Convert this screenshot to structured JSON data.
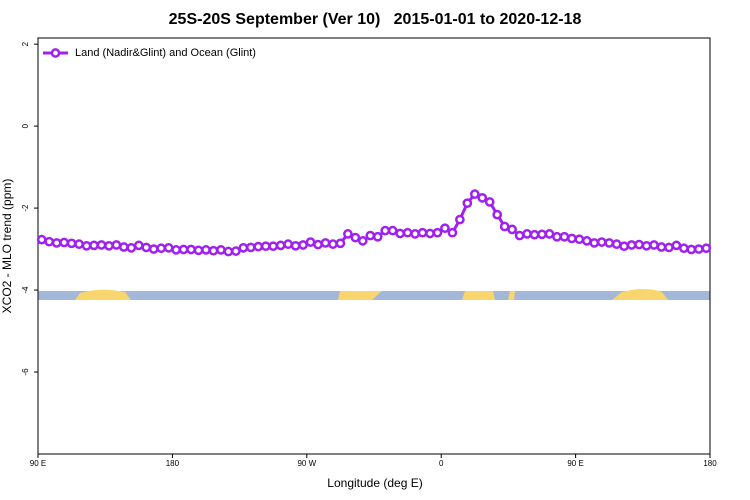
{
  "chart_data": {
    "type": "line",
    "title": "25S-20S September (Ver 10)   2015-01-01 to 2020-12-18",
    "x_label": "Longitude (deg E)",
    "y_label": "XCO2 - MLO trend (ppm)",
    "xlim": [
      90,
      540
    ],
    "ylim": [
      -8,
      2.15
    ],
    "xticks": [
      {
        "value": 90,
        "label": "90 E"
      },
      {
        "value": 180,
        "label": "180"
      },
      {
        "value": 270,
        "label": "90 W"
      },
      {
        "value": 360,
        "label": "0"
      },
      {
        "value": 450,
        "label": "90 E"
      },
      {
        "value": 540,
        "label": "180"
      }
    ],
    "yticks": [
      2,
      0,
      -2,
      -4,
      -6
    ],
    "legend": "top-left",
    "x": [
      92.5,
      97.5,
      102.5,
      107.5,
      112.5,
      117.5,
      122.5,
      127.5,
      132.5,
      137.5,
      142.5,
      147.5,
      152.5,
      157.5,
      162.5,
      167.5,
      172.5,
      177.5,
      182.5,
      187.5,
      192.5,
      197.5,
      202.5,
      207.5,
      212.5,
      217.5,
      222.5,
      227.5,
      232.5,
      237.5,
      242.5,
      247.5,
      252.5,
      257.5,
      262.5,
      267.5,
      272.5,
      277.5,
      282.5,
      287.5,
      292.5,
      297.5,
      302.5,
      307.5,
      312.5,
      317.5,
      322.5,
      327.5,
      332.5,
      337.5,
      342.5,
      347.5,
      352.5,
      357.5,
      362.5,
      367.5,
      372.5,
      377.5,
      382.5,
      387.5,
      392.5,
      397.5,
      402.5,
      407.5,
      412.5,
      417.5,
      422.5,
      427.5,
      432.5,
      437.5,
      442.5,
      447.5,
      452.5,
      457.5,
      462.5,
      467.5,
      472.5,
      477.5,
      482.5,
      487.5,
      492.5,
      497.5,
      502.5,
      507.5,
      512.5,
      517.5,
      522.5,
      527.5,
      532.5,
      537.5
    ],
    "series": [
      {
        "name": "Land (Nadir&Glint) and Ocean (Glint)",
        "color": "#a020f0",
        "values": [
          -2.77,
          -2.82,
          -2.85,
          -2.84,
          -2.86,
          -2.88,
          -2.92,
          -2.91,
          -2.9,
          -2.92,
          -2.9,
          -2.95,
          -2.97,
          -2.91,
          -2.96,
          -3.0,
          -2.98,
          -2.97,
          -3.02,
          -3.01,
          -3.01,
          -3.03,
          -3.02,
          -3.04,
          -3.02,
          -3.06,
          -3.05,
          -2.97,
          -2.96,
          -2.94,
          -2.93,
          -2.93,
          -2.91,
          -2.88,
          -2.92,
          -2.9,
          -2.83,
          -2.89,
          -2.85,
          -2.88,
          -2.86,
          -2.63,
          -2.72,
          -2.8,
          -2.67,
          -2.7,
          -2.55,
          -2.55,
          -2.62,
          -2.6,
          -2.63,
          -2.6,
          -2.62,
          -2.6,
          -2.49,
          -2.6,
          -2.28,
          -1.88,
          -1.66,
          -1.75,
          -1.85,
          -2.16,
          -2.45,
          -2.52,
          -2.67,
          -2.63,
          -2.65,
          -2.64,
          -2.63,
          -2.7,
          -2.7,
          -2.74,
          -2.76,
          -2.8,
          -2.85,
          -2.83,
          -2.85,
          -2.88,
          -2.93,
          -2.9,
          -2.89,
          -2.92,
          -2.9,
          -2.95,
          -2.96,
          -2.91,
          -2.98,
          -3.01,
          -3.0,
          -2.98
        ]
      }
    ]
  }
}
